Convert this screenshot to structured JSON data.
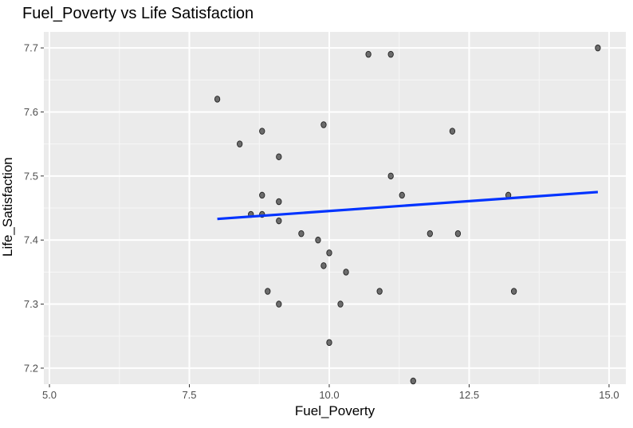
{
  "chart_data": {
    "type": "scatter",
    "title": "Fuel_Poverty vs Life Satisfaction",
    "xlabel": "Fuel_Poverty",
    "ylabel": "Life_Satisfaction",
    "xlim": [
      4.9,
      15.3
    ],
    "ylim": [
      7.175,
      7.725
    ],
    "x_ticks": [
      5.0,
      7.5,
      10.0,
      12.5,
      15.0
    ],
    "x_tick_labels": [
      "5.0",
      "7.5",
      "10.0",
      "12.5",
      "15.0"
    ],
    "y_ticks": [
      7.2,
      7.3,
      7.4,
      7.5,
      7.6,
      7.7
    ],
    "y_tick_labels": [
      "7.2",
      "7.3",
      "7.4",
      "7.5",
      "7.6",
      "7.7"
    ],
    "grid": true,
    "point_color": "#555555",
    "line_color": "#0033ff",
    "panel_color": "#ebebeb",
    "points": [
      {
        "x": 8.0,
        "y": 7.62
      },
      {
        "x": 8.4,
        "y": 7.55
      },
      {
        "x": 8.6,
        "y": 7.44
      },
      {
        "x": 8.8,
        "y": 7.57
      },
      {
        "x": 8.8,
        "y": 7.47
      },
      {
        "x": 8.8,
        "y": 7.44
      },
      {
        "x": 8.9,
        "y": 7.32
      },
      {
        "x": 9.1,
        "y": 7.53
      },
      {
        "x": 9.1,
        "y": 7.46
      },
      {
        "x": 9.1,
        "y": 7.43
      },
      {
        "x": 9.1,
        "y": 7.3
      },
      {
        "x": 9.5,
        "y": 7.41
      },
      {
        "x": 9.8,
        "y": 7.4
      },
      {
        "x": 9.9,
        "y": 7.58
      },
      {
        "x": 9.9,
        "y": 7.36
      },
      {
        "x": 10.0,
        "y": 7.38
      },
      {
        "x": 10.0,
        "y": 7.24
      },
      {
        "x": 10.2,
        "y": 7.3
      },
      {
        "x": 10.3,
        "y": 7.35
      },
      {
        "x": 10.7,
        "y": 7.69
      },
      {
        "x": 10.9,
        "y": 7.32
      },
      {
        "x": 11.1,
        "y": 7.69
      },
      {
        "x": 11.1,
        "y": 7.5
      },
      {
        "x": 11.3,
        "y": 7.47
      },
      {
        "x": 11.5,
        "y": 7.18
      },
      {
        "x": 11.8,
        "y": 7.41
      },
      {
        "x": 12.2,
        "y": 7.57
      },
      {
        "x": 12.3,
        "y": 7.41
      },
      {
        "x": 13.2,
        "y": 7.47
      },
      {
        "x": 13.3,
        "y": 7.32
      },
      {
        "x": 14.8,
        "y": 7.7
      }
    ],
    "trend_line": {
      "x": [
        8.0,
        14.8
      ],
      "y": [
        7.433,
        7.475
      ]
    }
  }
}
